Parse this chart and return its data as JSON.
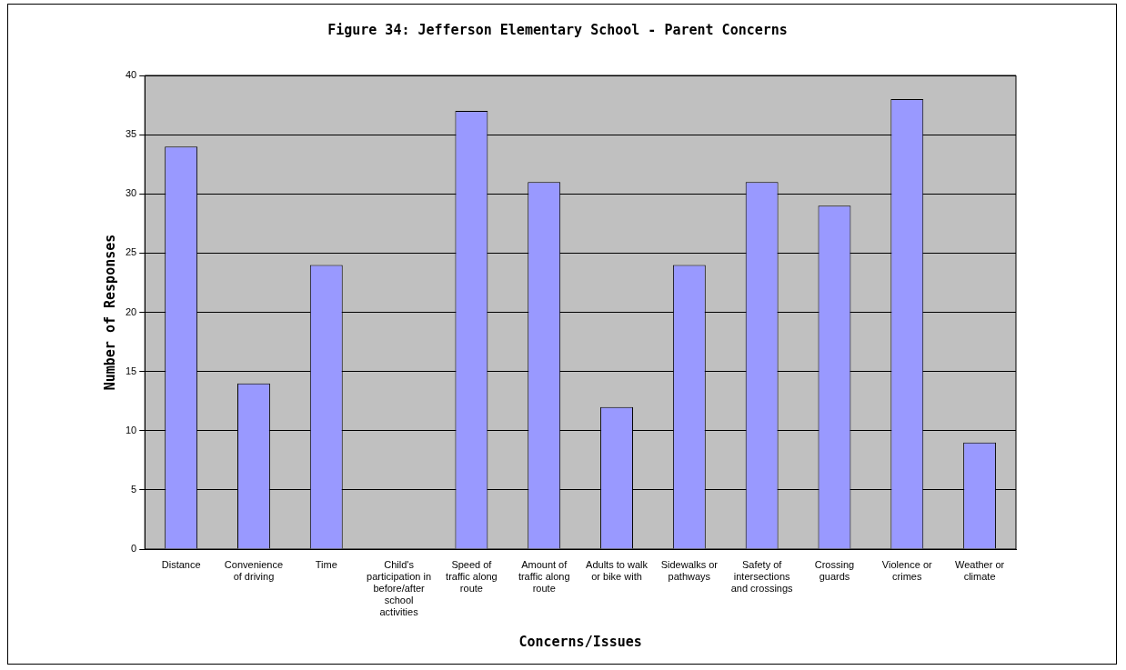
{
  "chart_data": {
    "type": "bar",
    "title": "Figure 34: Jefferson Elementary School - Parent Concerns",
    "xlabel": "Concerns/Issues",
    "ylabel": "Number of Responses",
    "categories": [
      "Distance",
      "Convenience of driving",
      "Time",
      "Child's participation in before/after school activities",
      "Speed of traffic along route",
      "Amount of traffic along route",
      "Adults to walk or bike with",
      "Sidewalks or pathways",
      "Safety of intersections and crossings",
      "Crossing guards",
      "Violence or crimes",
      "Weather or climate"
    ],
    "values": [
      34,
      14,
      24,
      0,
      37,
      31,
      12,
      24,
      31,
      29,
      38,
      9
    ],
    "color": "#9999ff",
    "ylim": [
      0,
      40
    ],
    "yticks": [
      0,
      5,
      10,
      15,
      20,
      25,
      30,
      35,
      40
    ],
    "grid": "y",
    "legend": false
  }
}
